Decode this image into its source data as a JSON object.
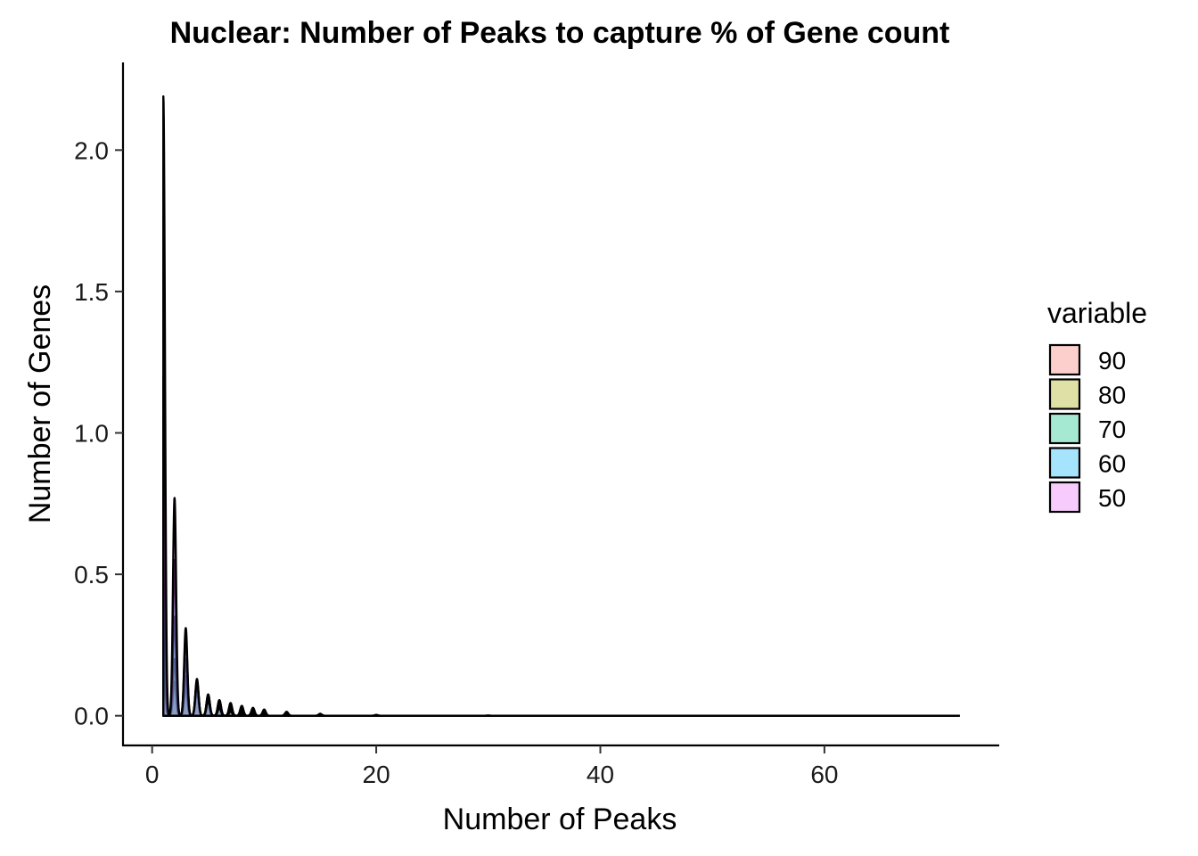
{
  "chart_data": {
    "type": "area",
    "title": "Nuclear: Number of Peaks to capture % of Gene count",
    "xlabel": "Number of Peaks",
    "ylabel": "Number of Genes",
    "xlim": [
      -2.6,
      75.6
    ],
    "ylim": [
      -0.105,
      2.31
    ],
    "x_ticks": [
      0,
      20,
      40,
      60
    ],
    "x_tick_labels": [
      "0",
      "20",
      "40",
      "60"
    ],
    "y_ticks": [
      0.0,
      0.5,
      1.0,
      1.5,
      2.0
    ],
    "y_tick_labels": [
      "0.0",
      "0.5",
      "1.0",
      "1.5",
      "2.0"
    ],
    "grid": false,
    "legend": {
      "title": "variable",
      "position": "right",
      "entries": [
        "90",
        "80",
        "70",
        "60",
        "50"
      ]
    },
    "x_range": [
      1,
      72
    ],
    "series": [
      {
        "name": "90",
        "color": "#F8766D",
        "peaks": [
          [
            1,
            0.2
          ],
          [
            2,
            0.12
          ],
          [
            3,
            0.1
          ],
          [
            4,
            0.085
          ],
          [
            5,
            0.07
          ],
          [
            6,
            0.055
          ],
          [
            7,
            0.045
          ],
          [
            8,
            0.035
          ],
          [
            9,
            0.028
          ],
          [
            10,
            0.022
          ],
          [
            12,
            0.014
          ],
          [
            15,
            0.007
          ],
          [
            20,
            0.003
          ],
          [
            30,
            0.001
          ]
        ]
      },
      {
        "name": "80",
        "color": "#A3A500",
        "peaks": [
          [
            1,
            0.3
          ],
          [
            2,
            0.2
          ],
          [
            3,
            0.14
          ],
          [
            4,
            0.1
          ],
          [
            5,
            0.075
          ],
          [
            6,
            0.055
          ],
          [
            7,
            0.04
          ],
          [
            8,
            0.03
          ],
          [
            9,
            0.022
          ],
          [
            10,
            0.016
          ],
          [
            12,
            0.009
          ],
          [
            15,
            0.004
          ],
          [
            20,
            0.0015
          ]
        ]
      },
      {
        "name": "70",
        "color": "#00BF7D",
        "peaks": [
          [
            1,
            0.6
          ],
          [
            2,
            0.35
          ],
          [
            3,
            0.2
          ],
          [
            4,
            0.12
          ],
          [
            5,
            0.075
          ],
          [
            6,
            0.05
          ],
          [
            7,
            0.033
          ],
          [
            8,
            0.022
          ],
          [
            9,
            0.015
          ],
          [
            10,
            0.01
          ],
          [
            12,
            0.005
          ],
          [
            15,
            0.002
          ]
        ]
      },
      {
        "name": "60",
        "color": "#00B0F6",
        "peaks": [
          [
            1,
            1.2
          ],
          [
            2,
            0.55
          ],
          [
            3,
            0.28
          ],
          [
            4,
            0.13
          ],
          [
            5,
            0.07
          ],
          [
            6,
            0.04
          ],
          [
            7,
            0.022
          ],
          [
            8,
            0.013
          ],
          [
            9,
            0.008
          ],
          [
            10,
            0.005
          ],
          [
            12,
            0.002
          ]
        ]
      },
      {
        "name": "50",
        "color": "#E76BF3",
        "peaks": [
          [
            1,
            2.19
          ],
          [
            2,
            0.77
          ],
          [
            3,
            0.31
          ],
          [
            4,
            0.12
          ],
          [
            5,
            0.055
          ],
          [
            6,
            0.028
          ],
          [
            7,
            0.015
          ],
          [
            8,
            0.008
          ],
          [
            9,
            0.004
          ],
          [
            10,
            0.002
          ]
        ]
      }
    ]
  }
}
